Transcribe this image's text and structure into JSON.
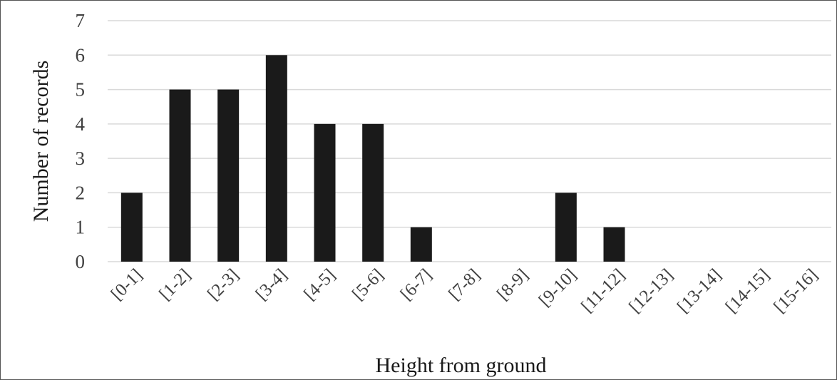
{
  "chart_data": {
    "type": "bar",
    "title": "",
    "xlabel": "Height from ground",
    "ylabel": "Number of records",
    "categories": [
      "[0-1]",
      "[1-2]",
      "[2-3]",
      "[3-4]",
      "[4-5]",
      "[5-6]",
      "[6-7]",
      "[7-8]",
      "[8-9]",
      "[9-10]",
      "[11-12]",
      "[12-13]",
      "[13-14]",
      "[14-15]",
      "[15-16]"
    ],
    "values": [
      2,
      5,
      5,
      6,
      4,
      4,
      1,
      0,
      0,
      2,
      1,
      0,
      0,
      0,
      0
    ],
    "ylim": [
      0,
      7
    ],
    "yticks": [
      "0",
      "1",
      "2",
      "3",
      "4",
      "5",
      "6",
      "7"
    ],
    "grid": true,
    "legend": "none",
    "bar_color": "#1a1a1a"
  }
}
